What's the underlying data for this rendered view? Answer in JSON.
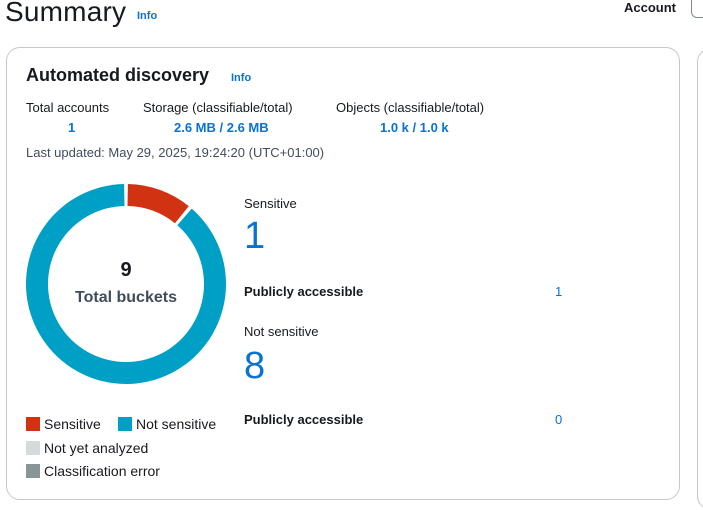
{
  "header": {
    "title": "Summary",
    "info": "Info",
    "account_label": "Account"
  },
  "card": {
    "title": "Automated discovery",
    "info": "Info",
    "stats": [
      {
        "label": "Total accounts",
        "value": "1"
      },
      {
        "label": "Storage (classifiable/total)",
        "value": "2.6 MB / 2.6 MB"
      },
      {
        "label": "Objects (classifiable/total)",
        "value": "1.0 k / 1.0 k"
      }
    ],
    "last_updated": "Last updated: May 29, 2025, 19:24:20 (UTC+01:00)",
    "donut": {
      "total": "9",
      "total_label": "Total buckets"
    },
    "legend": [
      {
        "label": "Sensitive",
        "color": "#d13212"
      },
      {
        "label": "Not sensitive",
        "color": "#009fc6"
      },
      {
        "label": "Not yet analyzed",
        "color": "#d5dbdb"
      },
      {
        "label": "Classification error",
        "color": "#879596"
      }
    ],
    "sensitive": {
      "label": "Sensitive",
      "count": "1",
      "public_label": "Publicly accessible",
      "public_value": "1"
    },
    "not_sensitive": {
      "label": "Not sensitive",
      "count": "8",
      "public_label": "Publicly accessible",
      "public_value": "0"
    }
  },
  "chart_data": {
    "type": "pie",
    "categories": [
      "Sensitive",
      "Not sensitive",
      "Not yet analyzed",
      "Classification error"
    ],
    "values": [
      1,
      8,
      0,
      0
    ],
    "title": "",
    "colors": [
      "#d13212",
      "#009fc6",
      "#d5dbdb",
      "#879596"
    ]
  }
}
